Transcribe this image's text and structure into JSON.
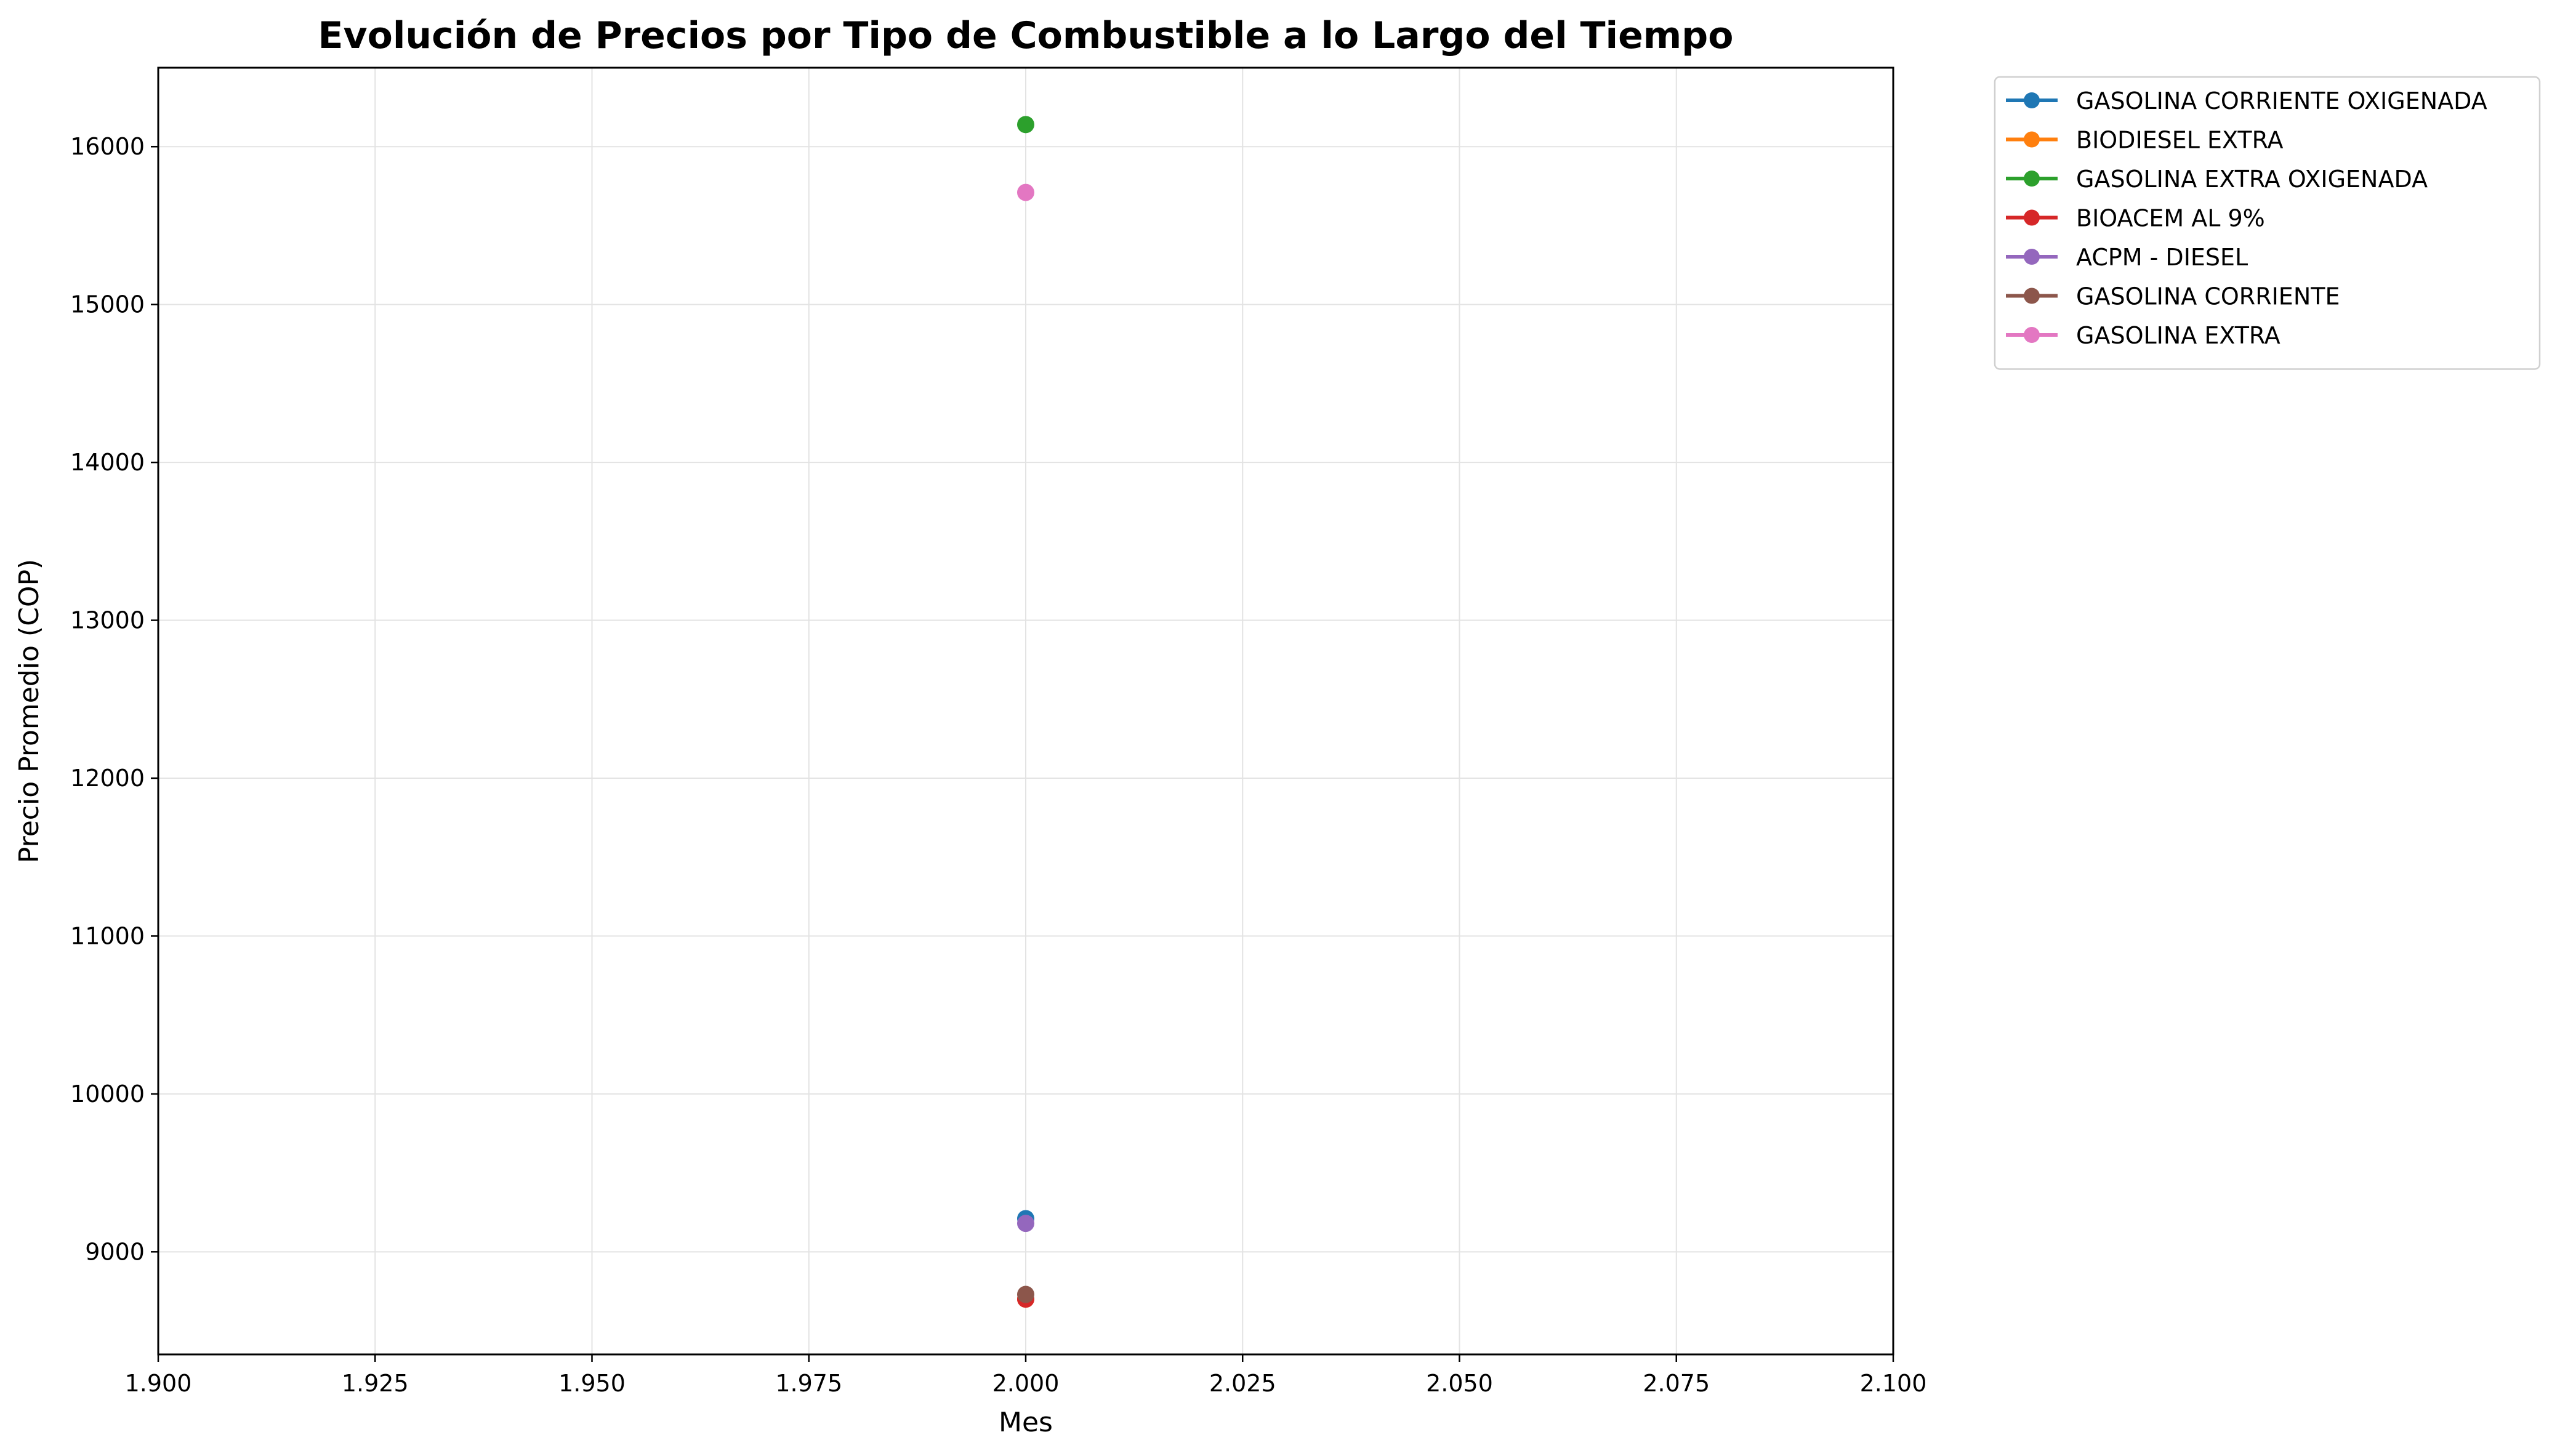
{
  "chart_data": {
    "type": "line",
    "title": "Evolución de Precios por Tipo de Combustible a lo Largo del Tiempo",
    "xlabel": "Mes",
    "ylabel": "Precio Promedio (COP)",
    "xlim": [
      1.9,
      2.1
    ],
    "ylim": [
      8350,
      16500
    ],
    "x_ticks": [
      "1.900",
      "1.925",
      "1.950",
      "1.975",
      "2.000",
      "2.025",
      "2.050",
      "2.075",
      "2.100"
    ],
    "y_ticks": [
      "9000",
      "10000",
      "11000",
      "12000",
      "13000",
      "14000",
      "15000",
      "16000"
    ],
    "grid": true,
    "legend_placement": "outside-top-right",
    "series": [
      {
        "name": "GASOLINA CORRIENTE OXIGENADA",
        "color": "#1f77b4",
        "x": [
          2.0
        ],
        "y": [
          9210
        ]
      },
      {
        "name": "BIODIESEL EXTRA",
        "color": "#ff7f0e",
        "x": [
          2.0
        ],
        "y": [
          8700
        ]
      },
      {
        "name": "GASOLINA EXTRA OXIGENADA",
        "color": "#2ca02c",
        "x": [
          2.0
        ],
        "y": [
          16140
        ]
      },
      {
        "name": "BIOACEM AL 9%",
        "color": "#d62728",
        "x": [
          2.0
        ],
        "y": [
          8700
        ]
      },
      {
        "name": "ACPM - DIESEL",
        "color": "#9467bd",
        "x": [
          2.0
        ],
        "y": [
          9180
        ]
      },
      {
        "name": "GASOLINA CORRIENTE",
        "color": "#8c564b",
        "x": [
          2.0
        ],
        "y": [
          8730
        ]
      },
      {
        "name": "GASOLINA EXTRA",
        "color": "#e377c2",
        "x": [
          2.0
        ],
        "y": [
          15710
        ]
      }
    ]
  }
}
